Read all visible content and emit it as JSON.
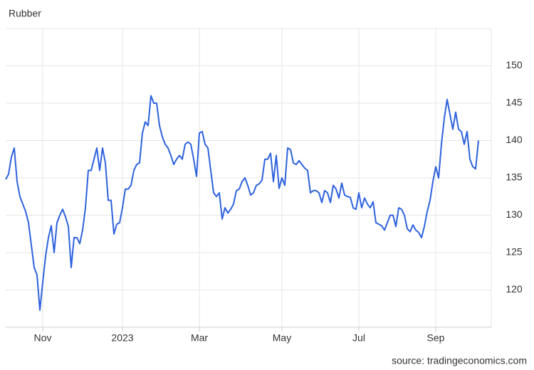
{
  "chart_data": {
    "type": "line",
    "title": "Rubber",
    "source": "source: tradingeconomics.com",
    "categories": [
      null,
      null,
      null,
      null,
      null,
      null,
      null,
      null,
      null,
      null,
      null,
      null,
      null,
      "Nov",
      null,
      null,
      null,
      null,
      null,
      null,
      null,
      null,
      null,
      null,
      null,
      null,
      null,
      null,
      null,
      null,
      null,
      null,
      null,
      null,
      null,
      null,
      null,
      null,
      null,
      null,
      null,
      "2023",
      null,
      null,
      null,
      null,
      null,
      null,
      null,
      null,
      null,
      null,
      null,
      null,
      null,
      null,
      null,
      null,
      null,
      null,
      null,
      null,
      null,
      null,
      null,
      null,
      null,
      null,
      "Mar",
      null,
      null,
      null,
      null,
      null,
      null,
      null,
      null,
      null,
      null,
      null,
      null,
      null,
      null,
      null,
      null,
      null,
      null,
      null,
      null,
      null,
      null,
      null,
      null,
      null,
      null,
      null,
      null,
      "May",
      null,
      null,
      null,
      null,
      null,
      null,
      null,
      null,
      null,
      null,
      null,
      null,
      null,
      null,
      null,
      null,
      null,
      null,
      null,
      null,
      null,
      null,
      null,
      null,
      null,
      null,
      "Jul",
      null,
      null,
      null,
      null,
      null,
      null,
      null,
      null,
      null,
      null,
      null,
      null,
      null,
      null,
      null,
      null,
      null,
      null,
      null,
      null,
      null,
      null,
      null,
      null,
      null,
      null,
      "Sep",
      null,
      null,
      null,
      null,
      null,
      null,
      null,
      null,
      null,
      null,
      null,
      null,
      null,
      null,
      null
    ],
    "series": [
      {
        "name": "Rubber",
        "color": "#2e62dd",
        "values": [
          134.8,
          135.5,
          137.8,
          139,
          134.5,
          132.5,
          131.5,
          130.5,
          129,
          126,
          123,
          122,
          117.3,
          121,
          124.5,
          127,
          128.6,
          125,
          129,
          130,
          130.8,
          129.8,
          128.5,
          123,
          127,
          127,
          126.2,
          128,
          131,
          136,
          136,
          137.5,
          139,
          136,
          139,
          137,
          132,
          132,
          127.5,
          128.8,
          129,
          131,
          133.5,
          133.5,
          134,
          136,
          136.8,
          137,
          141,
          142.5,
          142,
          146,
          145,
          145,
          142,
          140.5,
          139.5,
          139,
          138,
          136.8,
          137.5,
          138,
          137.5,
          139.5,
          139.8,
          139.5,
          137.5,
          135.2,
          141,
          141.2,
          139.5,
          139,
          136,
          133,
          132.5,
          133,
          129.5,
          131,
          130.3,
          130.8,
          131.5,
          133.3,
          133.5,
          134.5,
          135,
          134,
          132.7,
          133,
          134,
          134.2,
          134.7,
          137.5,
          137.5,
          138.3,
          134.5,
          138,
          133.6,
          135,
          134,
          139,
          138.8,
          137,
          136.8,
          137.3,
          136.8,
          136.3,
          136,
          133,
          133.3,
          133.3,
          133,
          131.7,
          133.3,
          133,
          131.7,
          134,
          133.5,
          132.3,
          134.3,
          132.7,
          132.5,
          132.4,
          131,
          130.8,
          133,
          131,
          132.3,
          131.5,
          131,
          131.8,
          129,
          128.8,
          128.6,
          128,
          129,
          130,
          130,
          128.5,
          131,
          130.8,
          130,
          128.2,
          127.8,
          128.7,
          128,
          127.7,
          127,
          128.5,
          130.5,
          132,
          134.5,
          136.5,
          135,
          139.5,
          143,
          145.5,
          143.5,
          141.5,
          143.8,
          141.5,
          141.2,
          139.5,
          141.2,
          137.5,
          136.5,
          136.2,
          140
        ]
      }
    ],
    "ylim": [
      115,
      155
    ],
    "yticks": [
      120,
      125,
      130,
      135,
      140,
      145,
      150
    ],
    "grid": true
  }
}
